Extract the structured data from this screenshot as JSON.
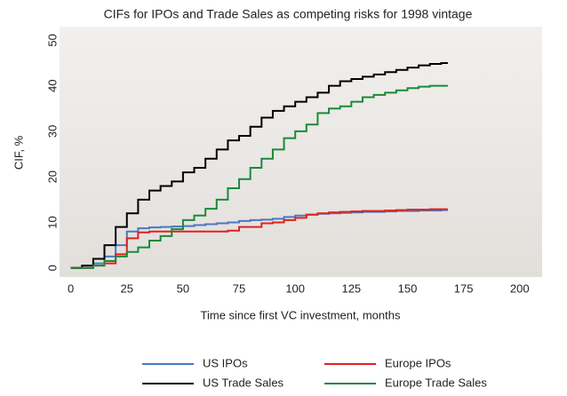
{
  "chart_data": {
    "type": "line",
    "step": true,
    "title": "CIFs for IPOs and Trade Sales as competing risks for 1998 vintage",
    "xlabel": "Time since first VC investment, months",
    "ylabel": "CIF, %",
    "xlim": [
      -5,
      210
    ],
    "ylim": [
      -2,
      53
    ],
    "xticks": [
      0,
      25,
      50,
      75,
      100,
      125,
      150,
      175,
      200
    ],
    "yticks": [
      0,
      10,
      20,
      30,
      40,
      50
    ],
    "grid": false,
    "legend": "bottom",
    "x": [
      0,
      5,
      10,
      15,
      20,
      25,
      30,
      35,
      40,
      45,
      50,
      55,
      60,
      65,
      70,
      75,
      80,
      85,
      90,
      95,
      100,
      105,
      110,
      115,
      120,
      125,
      130,
      135,
      140,
      145,
      150,
      155,
      160,
      165,
      168
    ],
    "series": [
      {
        "name": "US IPOs",
        "color": "#4a78c0",
        "values": [
          0,
          0,
          1,
          2.5,
          5,
          8,
          8.7,
          8.9,
          9,
          9.1,
          9.2,
          9.4,
          9.6,
          9.8,
          10,
          10.3,
          10.5,
          10.6,
          10.8,
          11.2,
          11.5,
          11.7,
          11.9,
          12,
          12.1,
          12.2,
          12.3,
          12.3,
          12.4,
          12.5,
          12.5,
          12.6,
          12.6,
          12.7,
          12.7
        ]
      },
      {
        "name": "Europe IPOs",
        "color": "#e02020",
        "values": [
          0,
          0,
          0.5,
          1,
          3,
          6.5,
          7.8,
          8,
          8,
          8,
          8,
          8,
          8,
          8,
          8.2,
          9,
          9,
          9.8,
          10,
          10.5,
          11,
          11.7,
          12,
          12.2,
          12.3,
          12.4,
          12.5,
          12.5,
          12.6,
          12.7,
          12.8,
          12.8,
          12.9,
          12.9,
          12.9
        ]
      },
      {
        "name": "US Trade Sales",
        "color": "#000000",
        "values": [
          0,
          0.5,
          2,
          5,
          9,
          12,
          15,
          17,
          18,
          19,
          21,
          22,
          24,
          26,
          28,
          29,
          31,
          33,
          34.5,
          35.5,
          36.5,
          37.5,
          38.5,
          40,
          41,
          41.5,
          42,
          42.5,
          43,
          43.5,
          44,
          44.5,
          44.8,
          45,
          45
        ]
      },
      {
        "name": "Europe Trade Sales",
        "color": "#1a8a3a",
        "values": [
          0,
          0,
          0.5,
          1.5,
          2.5,
          3.5,
          4.5,
          6,
          7,
          8.5,
          10.5,
          11.5,
          13,
          15,
          17.5,
          19.5,
          22,
          24,
          26,
          28.5,
          30,
          31.5,
          34,
          35,
          35.5,
          36.5,
          37.5,
          38,
          38.5,
          39,
          39.5,
          39.8,
          40,
          40,
          40
        ]
      }
    ]
  }
}
